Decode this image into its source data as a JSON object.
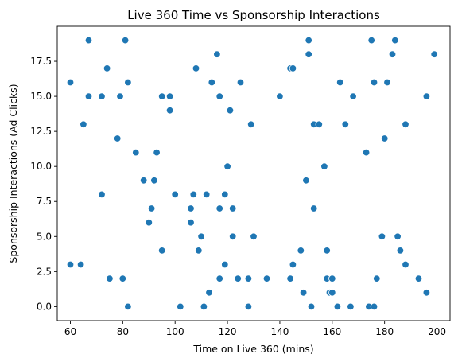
{
  "chart_data": {
    "type": "scatter",
    "title": "Live 360 Time vs Sponsorship Interactions",
    "xlabel": "Time on Live 360 (mins)",
    "ylabel": "Sponsorship Interactions (Ad Clicks)",
    "xlim": [
      55,
      205
    ],
    "ylim": [
      -1,
      20
    ],
    "xticks": [
      60,
      80,
      100,
      120,
      140,
      160,
      180,
      200
    ],
    "yticks": [
      0.0,
      2.5,
      5.0,
      7.5,
      10.0,
      12.5,
      15.0,
      17.5
    ],
    "grid": false,
    "marker_color": "#1f77b4",
    "points": [
      [
        60,
        16
      ],
      [
        60,
        3
      ],
      [
        64,
        3
      ],
      [
        65,
        13
      ],
      [
        67,
        19
      ],
      [
        67,
        15
      ],
      [
        72,
        15
      ],
      [
        72,
        8
      ],
      [
        74,
        17
      ],
      [
        75,
        2
      ],
      [
        78,
        12
      ],
      [
        79,
        15
      ],
      [
        80,
        2
      ],
      [
        81,
        19
      ],
      [
        82,
        16
      ],
      [
        82,
        0
      ],
      [
        85,
        11
      ],
      [
        88,
        9
      ],
      [
        90,
        6
      ],
      [
        91,
        7
      ],
      [
        92,
        9
      ],
      [
        93,
        11
      ],
      [
        95,
        15
      ],
      [
        95,
        4
      ],
      [
        98,
        15
      ],
      [
        98,
        14
      ],
      [
        100,
        8
      ],
      [
        102,
        0
      ],
      [
        106,
        7
      ],
      [
        106,
        6
      ],
      [
        107,
        8
      ],
      [
        108,
        17
      ],
      [
        109,
        4
      ],
      [
        110,
        5
      ],
      [
        111,
        0
      ],
      [
        112,
        8
      ],
      [
        113,
        1
      ],
      [
        114,
        16
      ],
      [
        116,
        18
      ],
      [
        117,
        15
      ],
      [
        117,
        7
      ],
      [
        117,
        2
      ],
      [
        119,
        8
      ],
      [
        119,
        3
      ],
      [
        120,
        10
      ],
      [
        121,
        14
      ],
      [
        122,
        7
      ],
      [
        122,
        5
      ],
      [
        124,
        2
      ],
      [
        125,
        16
      ],
      [
        128,
        2
      ],
      [
        128,
        0
      ],
      [
        129,
        13
      ],
      [
        130,
        5
      ],
      [
        135,
        2
      ],
      [
        140,
        15
      ],
      [
        144,
        17
      ],
      [
        145,
        17
      ],
      [
        144,
        2
      ],
      [
        145,
        3
      ],
      [
        148,
        4
      ],
      [
        149,
        1
      ],
      [
        150,
        9
      ],
      [
        151,
        19
      ],
      [
        151,
        18
      ],
      [
        152,
        0
      ],
      [
        153,
        7
      ],
      [
        153,
        13
      ],
      [
        155,
        13
      ],
      [
        157,
        10
      ],
      [
        158,
        2
      ],
      [
        158,
        4
      ],
      [
        159,
        1
      ],
      [
        160,
        1
      ],
      [
        160,
        2
      ],
      [
        162,
        0
      ],
      [
        163,
        16
      ],
      [
        165,
        13
      ],
      [
        167,
        0
      ],
      [
        168,
        15
      ],
      [
        173,
        11
      ],
      [
        174,
        0
      ],
      [
        175,
        19
      ],
      [
        176,
        0
      ],
      [
        176,
        16
      ],
      [
        177,
        2
      ],
      [
        179,
        5
      ],
      [
        180,
        12
      ],
      [
        181,
        16
      ],
      [
        183,
        18
      ],
      [
        184,
        19
      ],
      [
        185,
        5
      ],
      [
        186,
        4
      ],
      [
        188,
        13
      ],
      [
        188,
        3
      ],
      [
        193,
        2
      ],
      [
        196,
        15
      ],
      [
        196,
        1
      ],
      [
        199,
        18
      ]
    ]
  }
}
